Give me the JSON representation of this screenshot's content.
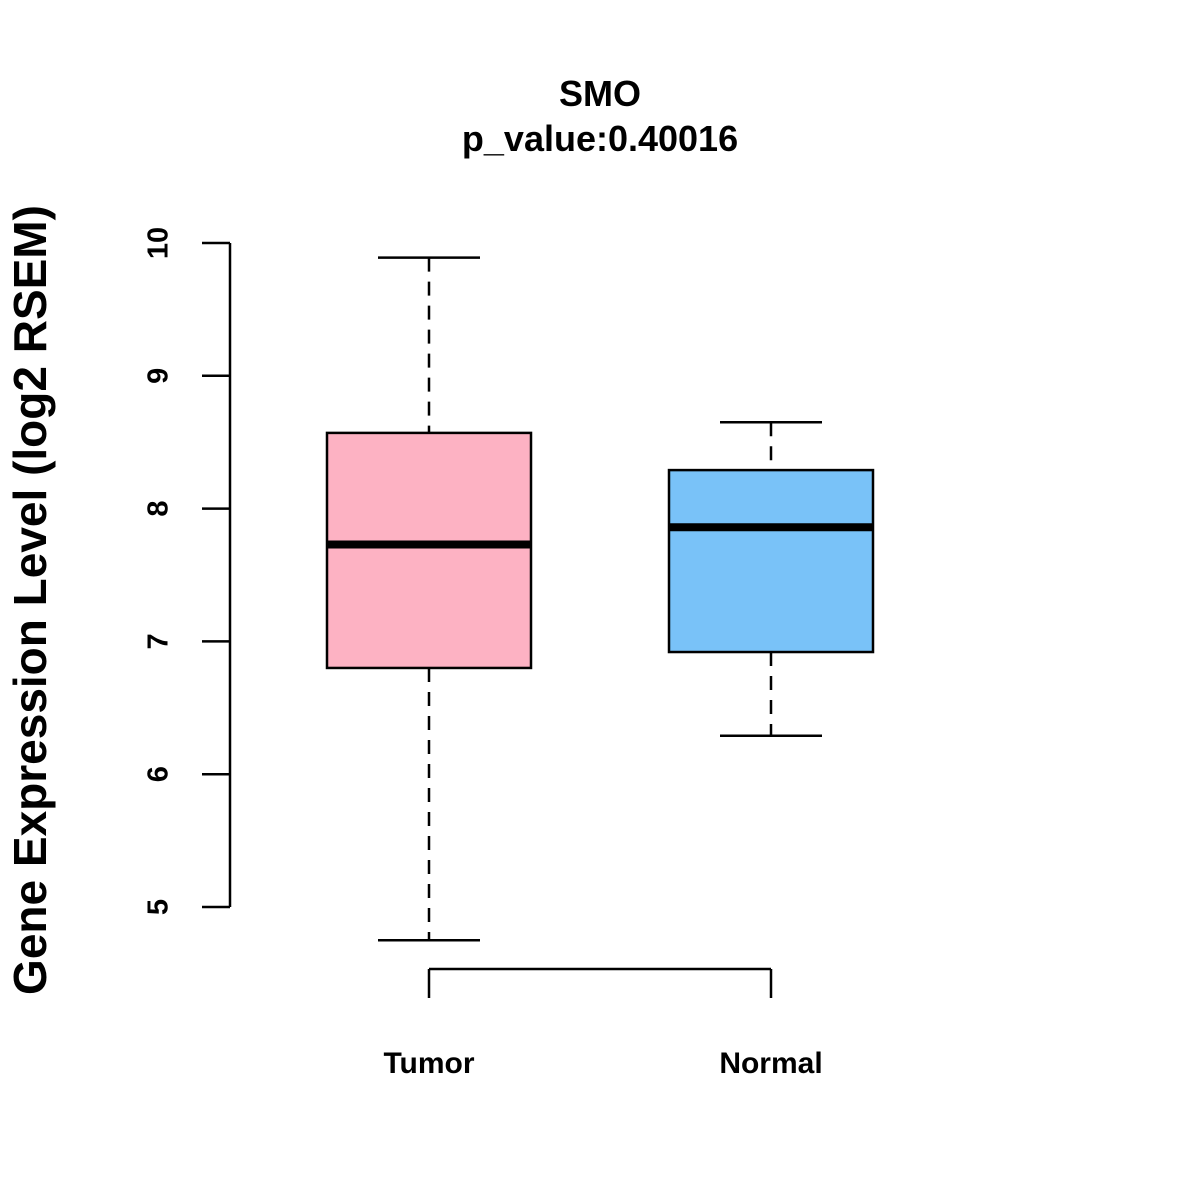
{
  "chart_data": {
    "type": "boxplot",
    "title": "SMO",
    "subtitle": "p_value:0.40016",
    "xlabel": "",
    "ylabel": "Gene Expression Level (log2 RSEM)",
    "ylim": [
      5,
      10
    ],
    "yticks": [
      "5",
      "6",
      "7",
      "8",
      "9",
      "10"
    ],
    "grid": false,
    "categories": [
      "Tumor",
      "Normal"
    ],
    "series": [
      {
        "name": "Tumor",
        "color": "#FDB2C3",
        "whisker_low": 4.75,
        "q1": 6.8,
        "median": 7.73,
        "q3": 8.57,
        "whisker_high": 9.89
      },
      {
        "name": "Normal",
        "color": "#79C2F8",
        "whisker_low": 6.29,
        "q1": 6.92,
        "median": 7.86,
        "q3": 8.29,
        "whisker_high": 8.65
      }
    ],
    "comparison_bracket": {
      "between": [
        "Tumor",
        "Normal"
      ],
      "level": 4.55
    }
  }
}
